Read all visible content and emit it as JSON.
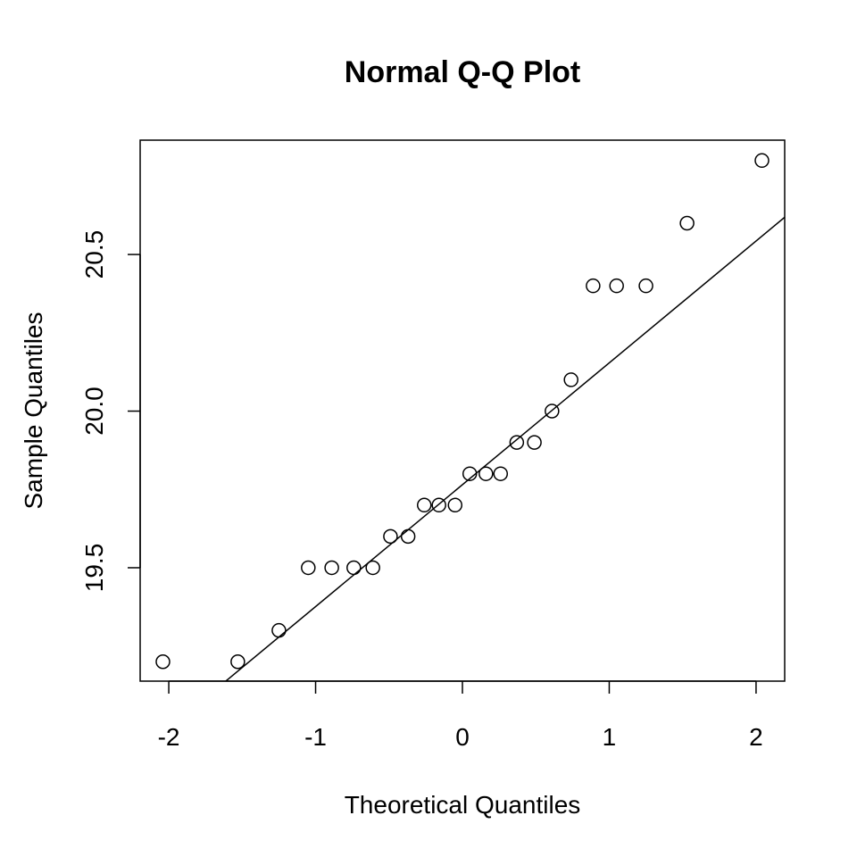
{
  "chart_data": {
    "type": "scatter",
    "title": "Normal Q-Q Plot",
    "x_label": "Theoretical Quantiles",
    "y_label": "Sample Quantiles",
    "x": [
      -2.04,
      -1.53,
      -1.25,
      -1.05,
      -0.89,
      -0.74,
      -0.61,
      -0.49,
      -0.37,
      -0.26,
      -0.16,
      -0.05,
      0.05,
      0.16,
      0.26,
      0.37,
      0.49,
      0.61,
      0.74,
      0.89,
      1.05,
      1.25,
      1.53,
      2.04
    ],
    "values": [
      19.2,
      19.2,
      19.3,
      19.5,
      19.5,
      19.5,
      19.5,
      19.6,
      19.6,
      19.7,
      19.7,
      19.7,
      19.8,
      19.8,
      19.8,
      19.9,
      19.9,
      20.0,
      20.1,
      20.4,
      20.4,
      20.4,
      20.6,
      20.8
    ],
    "color": "#000000",
    "reference_line": {
      "intercept": 19.765,
      "slope": 0.389
    },
    "xlim": [
      -2.195,
      2.195
    ],
    "ylim": [
      19.138,
      20.865
    ],
    "xticks": [
      -2,
      -1,
      0,
      1,
      2
    ],
    "yticks": [
      {
        "value": 19.5,
        "label": "19.5"
      },
      {
        "value": 20.0,
        "label": "20.0"
      },
      {
        "value": 20.5,
        "label": "20.5"
      }
    ]
  }
}
